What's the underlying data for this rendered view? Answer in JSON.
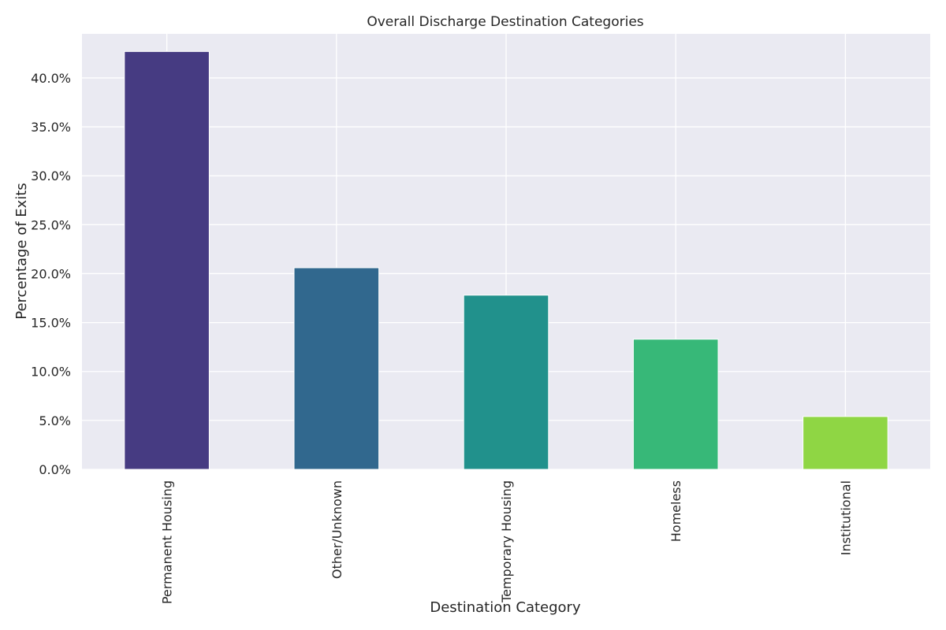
{
  "chart_data": {
    "type": "bar",
    "title": "Overall Discharge Destination Categories",
    "xlabel": "Destination Category",
    "ylabel": "Percentage of Exits",
    "categories": [
      "Permanent Housing",
      "Other/Unknown",
      "Temporary Housing",
      "Homeless",
      "Institutional"
    ],
    "values": [
      0.427,
      0.206,
      0.178,
      0.133,
      0.054
    ],
    "colors": [
      "#463b82",
      "#31688e",
      "#21918c",
      "#37b878",
      "#8fd644"
    ],
    "ylim": [
      0,
      0.445
    ],
    "yticks": [
      0,
      0.05,
      0.1,
      0.15,
      0.2,
      0.25,
      0.3,
      0.35,
      0.4
    ],
    "ytick_labels": [
      "0.0%",
      "5.0%",
      "10.0%",
      "15.0%",
      "20.0%",
      "25.0%",
      "30.0%",
      "35.0%",
      "40.0%"
    ],
    "grid": true,
    "background": "#eaeaf2"
  }
}
